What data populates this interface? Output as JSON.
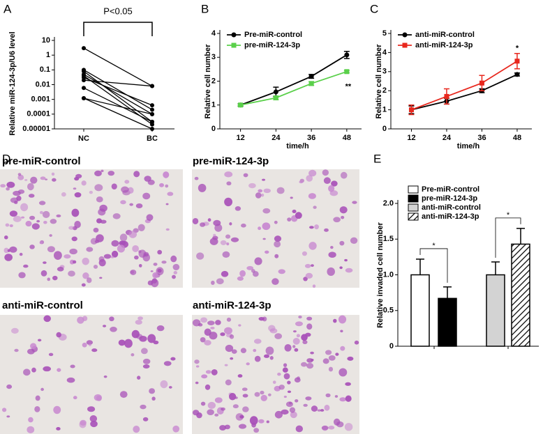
{
  "chart_data": [
    {
      "type": "paired",
      "panel": "A",
      "annotation": "P<0.05",
      "ylabel": "Relative miR-124-3p/U6 level",
      "categories": [
        "NC",
        "BC"
      ],
      "values": [
        [
          3,
          0.008
        ],
        [
          0.1,
          0.0002
        ],
        [
          0.08,
          3e-05
        ],
        [
          0.05,
          0.0001
        ],
        [
          0.04,
          2e-05
        ],
        [
          0.03,
          0.0004
        ],
        [
          0.02,
          0.008
        ],
        [
          0.006,
          3e-05
        ],
        [
          0.0012,
          0.0001
        ],
        [
          0.0012,
          1e-05
        ]
      ],
      "log_y": true,
      "ylim": [
        1e-05,
        10
      ],
      "yticks": [
        1e-05,
        0.0001,
        0.001,
        0.01,
        0.1,
        1,
        10
      ],
      "color": "#000000"
    },
    {
      "type": "line",
      "panel": "B",
      "xlabel": "time/h",
      "ylabel": "Relative cell number",
      "annotation": "**",
      "x": [
        12,
        24,
        36,
        48
      ],
      "xlim": [
        5,
        53
      ],
      "xticks": [
        12,
        24,
        36,
        48
      ],
      "ylim": [
        0,
        4
      ],
      "yticks": [
        0,
        1,
        2,
        3,
        4
      ],
      "legend": "upper left",
      "series": [
        {
          "name": "Pre-miR-control",
          "color": "#000000",
          "marker": "circle",
          "values": [
            1,
            1.55,
            2.2,
            3.1
          ],
          "errors": [
            0.05,
            0.2,
            0.08,
            0.15
          ]
        },
        {
          "name": "pre-miR-124-3p",
          "color": "#5ad04a",
          "marker": "square",
          "values": [
            1,
            1.3,
            1.9,
            2.4
          ],
          "errors": [
            0.03,
            0.08,
            0.08,
            0.05
          ]
        }
      ]
    },
    {
      "type": "line",
      "panel": "C",
      "xlabel": "time/h",
      "ylabel": "Relative cell number",
      "annotation": "*",
      "x": [
        12,
        24,
        36,
        48
      ],
      "xlim": [
        5,
        53
      ],
      "xticks": [
        12,
        24,
        36,
        48
      ],
      "ylim": [
        0,
        5
      ],
      "yticks": [
        0,
        1,
        2,
        3,
        4,
        5
      ],
      "legend": "upper left",
      "series": [
        {
          "name": "anti-miR-control",
          "color": "#000000",
          "marker": "circle",
          "values": [
            1,
            1.45,
            2.0,
            2.85
          ],
          "errors": [
            0.2,
            0.15,
            0.1,
            0.08
          ]
        },
        {
          "name": "anti-miR-124-3p",
          "color": "#e8281e",
          "marker": "square",
          "values": [
            1,
            1.7,
            2.4,
            3.55
          ],
          "errors": [
            0.25,
            0.4,
            0.4,
            0.4
          ]
        }
      ]
    },
    {
      "type": "bar",
      "panel": "E",
      "ylabel": "Relative invaded cell number",
      "annotations": [
        "*",
        "*"
      ],
      "ylim": [
        0,
        2
      ],
      "yticks": [
        0,
        0.5,
        {
          "value": 1,
          "label": "1.0"
        },
        1.5,
        {
          "value": 2,
          "label": "2.0"
        }
      ],
      "legend": "upper left",
      "series": [
        {
          "name": "Pre-miR-control",
          "color": "#ffffff",
          "values": [
            1.0
          ],
          "errors": [
            0.22
          ]
        },
        {
          "name": "pre-miR-124-3p",
          "color": "#000000",
          "values": [
            0.67
          ],
          "errors": [
            0.16
          ]
        },
        {
          "name": "anti-miR-control",
          "color": "#d3d3d3",
          "values": [
            1.0
          ],
          "errors": [
            0.18
          ]
        },
        {
          "name": "anti-miR-124-3p",
          "color": "#ffffff",
          "hatch": true,
          "values": [
            1.43
          ],
          "errors": [
            0.22
          ]
        }
      ]
    }
  ],
  "images": {
    "panel": "D",
    "labels": [
      "pre-miR-control",
      "pre-miR-124-3p",
      "anti-miR-control",
      "anti-miR-124-3p"
    ]
  }
}
